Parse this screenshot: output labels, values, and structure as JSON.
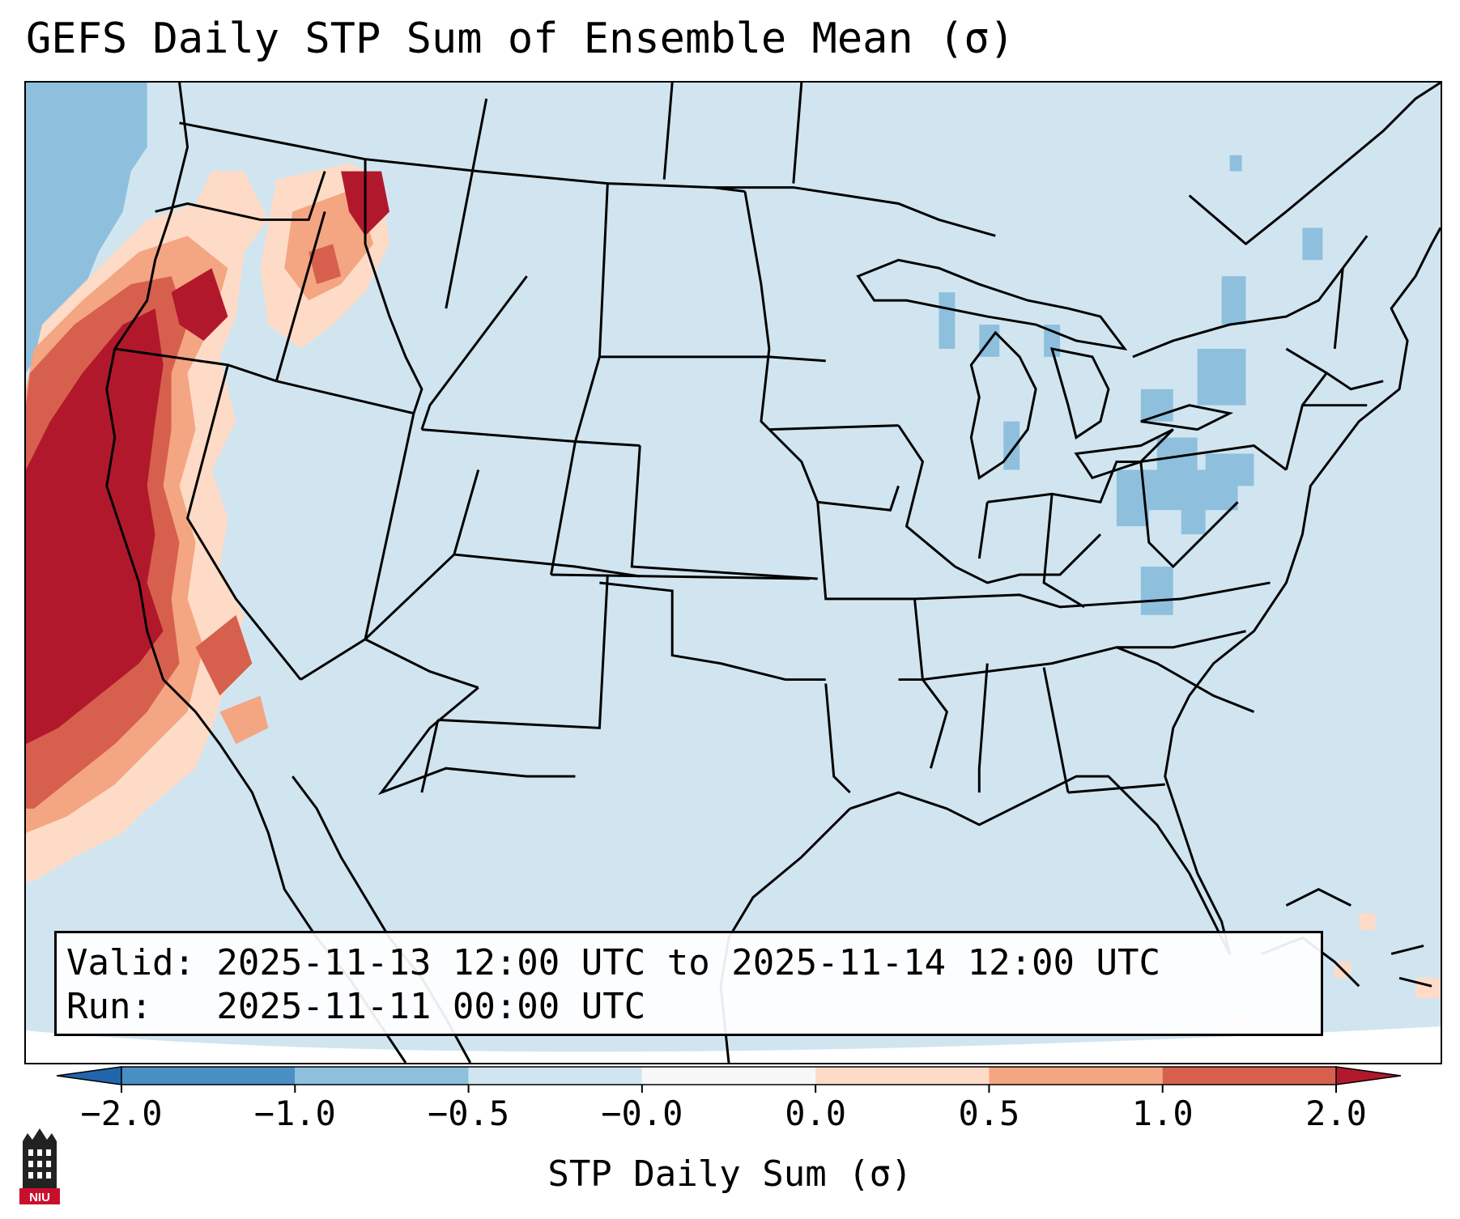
{
  "title": "GEFS Daily STP Sum of Ensemble Mean (σ)",
  "info": {
    "valid_line": "Valid: 2025-11-13 12:00 UTC to 2025-11-14 12:00 UTC",
    "run_line": "Run:   2025-11-11 00:00 UTC"
  },
  "colorbar": {
    "label": "STP Daily Sum (σ)",
    "ticks": [
      "−2.0",
      "−1.0",
      "−0.5",
      "−0.0",
      "0.0",
      "0.5",
      "1.0",
      "2.0"
    ],
    "bins": [
      {
        "min": -2.0,
        "max": -1.0,
        "color": "#4a8fc4"
      },
      {
        "min": -1.0,
        "max": -0.5,
        "color": "#8ec0de"
      },
      {
        "min": -0.5,
        "max": -0.0,
        "color": "#d1e5f0"
      },
      {
        "min": -0.0,
        "max": 0.0,
        "color": "#f7f7f7"
      },
      {
        "min": 0.0,
        "max": 0.5,
        "color": "#fddbc7"
      },
      {
        "min": 0.5,
        "max": 1.0,
        "color": "#f4a582"
      },
      {
        "min": 1.0,
        "max": 2.0,
        "color": "#d6604d"
      }
    ],
    "extend_low_color": "#2166ac",
    "extend_high_color": "#b2182b"
  },
  "map": {
    "background_color": "#d1e5f0",
    "anomaly_regions": [
      {
        "name": "Pacific Northwest coast",
        "level": "strong-positive",
        "color": "#b2182b"
      },
      {
        "name": "California coast",
        "level": "strong-positive",
        "color": "#b2182b"
      },
      {
        "name": "Idaho panhandle",
        "level": "strong-positive",
        "color": "#b2182b"
      },
      {
        "name": "Northern Great Basin",
        "level": "weak-positive",
        "color": "#fddbc7"
      },
      {
        "name": "Pennsylvania / New York",
        "level": "weak-negative",
        "color": "#8ec0de"
      },
      {
        "name": "Upper Michigan",
        "level": "weak-negative",
        "color": "#8ec0de"
      },
      {
        "name": "Offshore Pacific",
        "level": "weak-negative",
        "color": "#8ec0de"
      }
    ]
  },
  "logo": {
    "text": "NIU"
  }
}
